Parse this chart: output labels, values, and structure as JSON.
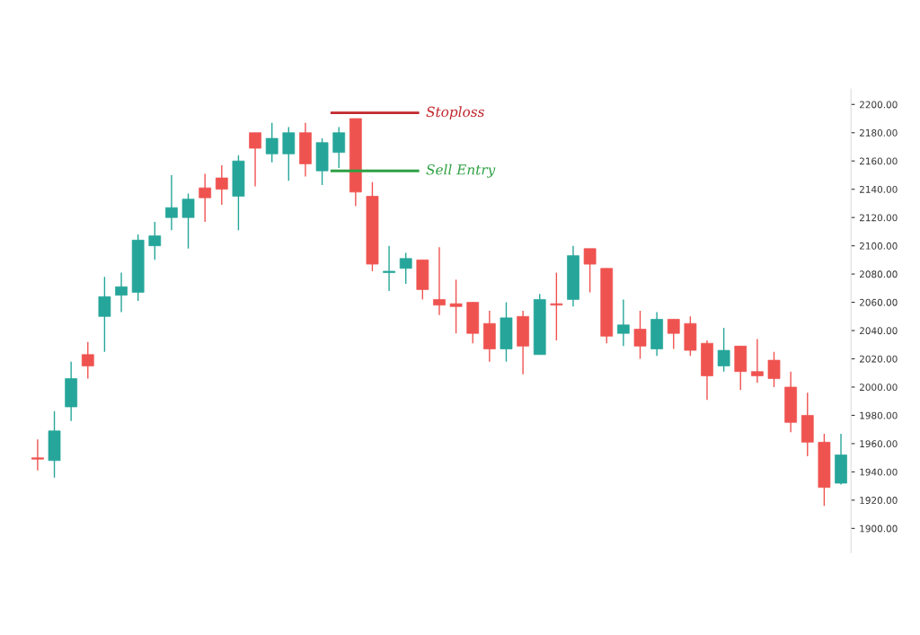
{
  "chart_data": {
    "type": "candlestick",
    "categories": [
      null,
      null,
      null,
      null,
      null,
      null,
      null,
      null,
      null,
      null,
      null,
      null,
      null,
      null,
      null,
      null,
      null,
      null,
      null,
      null,
      null,
      null,
      null,
      null,
      null,
      null,
      null,
      null,
      null,
      null,
      null,
      null,
      null,
      null,
      null,
      null,
      null,
      null,
      null,
      null,
      null,
      null,
      null,
      null,
      null,
      null,
      null,
      null,
      null
    ],
    "ohlc": [
      [
        1950,
        1963,
        1941,
        1949
      ],
      [
        1948,
        1983,
        1936,
        1969
      ],
      [
        1986,
        2018,
        1976,
        2006
      ],
      [
        2023,
        2032,
        2006,
        2015
      ],
      [
        2050,
        2078,
        2025,
        2064
      ],
      [
        2065,
        2081,
        2053,
        2071
      ],
      [
        2067,
        2108,
        2061,
        2104
      ],
      [
        2100,
        2117,
        2090,
        2107
      ],
      [
        2120,
        2150,
        2111,
        2127
      ],
      [
        2120,
        2137,
        2098,
        2133
      ],
      [
        2141,
        2151,
        2117,
        2134
      ],
      [
        2148,
        2157,
        2129,
        2140
      ],
      [
        2135,
        2164,
        2111,
        2160
      ],
      [
        2180,
        2180,
        2142,
        2169
      ],
      [
        2165,
        2187,
        2159,
        2176
      ],
      [
        2165,
        2184,
        2146,
        2180
      ],
      [
        2180,
        2187,
        2149,
        2158
      ],
      [
        2153,
        2176,
        2143,
        2173
      ],
      [
        2166,
        2184,
        2155,
        2180
      ],
      [
        2190,
        2190,
        2128,
        2138
      ],
      [
        2135,
        2145,
        2082,
        2087
      ],
      [
        2081,
        2100,
        2068,
        2082
      ],
      [
        2084,
        2095,
        2073,
        2091
      ],
      [
        2090,
        2090,
        2062,
        2069
      ],
      [
        2062,
        2099,
        2051,
        2058
      ],
      [
        2059,
        2076,
        2038,
        2057
      ],
      [
        2060,
        2060,
        2031,
        2038
      ],
      [
        2045,
        2054,
        2018,
        2027
      ],
      [
        2027,
        2060,
        2018,
        2049
      ],
      [
        2050,
        2054,
        2009,
        2029
      ],
      [
        2023,
        2066,
        2023,
        2062
      ],
      [
        2059,
        2081,
        2033,
        2058
      ],
      [
        2062,
        2100,
        2057,
        2093
      ],
      [
        2098,
        2098,
        2067,
        2087
      ],
      [
        2084,
        2084,
        2031,
        2036
      ],
      [
        2038,
        2062,
        2029,
        2044
      ],
      [
        2041,
        2054,
        2020,
        2029
      ],
      [
        2027,
        2053,
        2022,
        2048
      ],
      [
        2048,
        2048,
        2027,
        2038
      ],
      [
        2045,
        2050,
        2022,
        2026
      ],
      [
        2031,
        2033,
        1991,
        2008
      ],
      [
        2015,
        2042,
        2011,
        2026
      ],
      [
        2029,
        2029,
        1998,
        2011
      ],
      [
        2011,
        2034,
        2003,
        2008
      ],
      [
        2019,
        2025,
        2000,
        2006
      ],
      [
        2000,
        2011,
        1968,
        1975
      ],
      [
        1980,
        1996,
        1951,
        1961
      ],
      [
        1961,
        1967,
        1916,
        1929
      ],
      [
        1932,
        1967,
        1931,
        1952
      ]
    ],
    "colors": [
      "#ef5350",
      "#26a69a",
      "#26a69a",
      "#ef5350",
      "#26a69a",
      "#26a69a",
      "#26a69a",
      "#26a69a",
      "#26a69a",
      "#26a69a",
      "#ef5350",
      "#ef5350",
      "#26a69a",
      "#ef5350",
      "#26a69a",
      "#26a69a",
      "#ef5350",
      "#26a69a",
      "#26a69a",
      "#ef5350",
      "#ef5350",
      "#26a69a",
      "#26a69a",
      "#ef5350",
      "#ef5350",
      "#ef5350",
      "#ef5350",
      "#ef5350",
      "#26a69a",
      "#ef5350",
      "#26a69a",
      "#ef5350",
      "#26a69a",
      "#ef5350",
      "#ef5350",
      "#26a69a",
      "#ef5350",
      "#26a69a",
      "#ef5350",
      "#ef5350",
      "#ef5350",
      "#26a69a",
      "#ef5350",
      "#ef5350",
      "#ef5350",
      "#ef5350",
      "#ef5350",
      "#ef5350",
      "#26a69a"
    ],
    "ylim": [
      1883,
      2211
    ],
    "yticks": [
      {
        "value": 1900,
        "label": "1900.00"
      },
      {
        "value": 1920,
        "label": "1920.00"
      },
      {
        "value": 1940,
        "label": "1940.00"
      },
      {
        "value": 1960,
        "label": "1960.00"
      },
      {
        "value": 1980,
        "label": "1980.00"
      },
      {
        "value": 2000,
        "label": "2000.00"
      },
      {
        "value": 2020,
        "label": "2020.00"
      },
      {
        "value": 2040,
        "label": "2040.00"
      },
      {
        "value": 2060,
        "label": "2060.00"
      },
      {
        "value": 2080,
        "label": "2080.00"
      },
      {
        "value": 2100,
        "label": "2100.00"
      },
      {
        "value": 2120,
        "label": "2120.00"
      },
      {
        "value": 2140,
        "label": "2140.00"
      },
      {
        "value": 2160,
        "label": "2160.00"
      },
      {
        "value": 2180,
        "label": "2180.00"
      },
      {
        "value": 2200,
        "label": "2200.00"
      }
    ],
    "ref_lines": [
      {
        "axis": "y",
        "value": 2194,
        "label": "Stoploss",
        "color": "#c0282d"
      },
      {
        "axis": "y",
        "value": 2153,
        "label": "Sell Entry",
        "color": "#2ea043"
      }
    ],
    "tick_labels": "y",
    "grid": false
  }
}
